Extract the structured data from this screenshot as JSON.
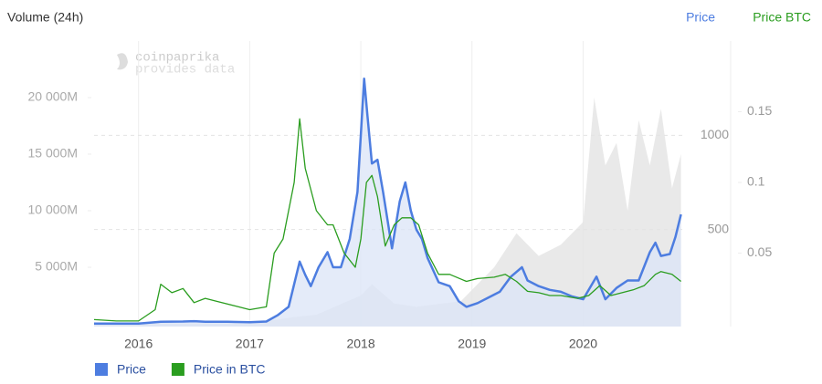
{
  "chart_data": {
    "type": "line",
    "ylabel": "Volume (24h)",
    "y2label": "Price",
    "y3label": "Price BTC",
    "watermark": [
      "coinpaprika",
      "provides data"
    ],
    "xlim": [
      2015.6,
      2020.9
    ],
    "xticks": [
      2016,
      2017,
      2018,
      2019,
      2020
    ],
    "ylim": [
      0,
      25000
    ],
    "yticks": [
      {
        "value": 5000,
        "label": "5 000M"
      },
      {
        "value": 10000,
        "label": "10 000M"
      },
      {
        "value": 15000,
        "label": "15 000M"
      },
      {
        "value": 20000,
        "label": "20 000M"
      }
    ],
    "y2lim": [
      0,
      1500
    ],
    "y2ticks": [
      500,
      1000
    ],
    "y3lim": [
      0,
      0.2
    ],
    "y3ticks": [
      0.05,
      0.1,
      0.15
    ],
    "grid": true,
    "volume": {
      "color": "#e4e4e4",
      "x": [
        2015.6,
        2016.0,
        2016.5,
        2017.0,
        2017.4,
        2017.6,
        2018.0,
        2018.1,
        2018.3,
        2018.5,
        2018.9,
        2019.2,
        2019.4,
        2019.6,
        2019.8,
        2020.0,
        2020.1,
        2020.2,
        2020.3,
        2020.4,
        2020.5,
        2020.6,
        2020.7,
        2020.8,
        2020.88
      ],
      "values": [
        1,
        5,
        30,
        20,
        600,
        800,
        2500,
        3500,
        1800,
        1500,
        2000,
        5000,
        8000,
        6000,
        7000,
        9000,
        20000,
        14000,
        16000,
        10000,
        18000,
        14000,
        19000,
        12000,
        15000
      ]
    },
    "series": [
      {
        "name": "Price",
        "color": "#4d7de0",
        "fill": "#dbe4f7",
        "axis": "y2",
        "x": [
          2015.6,
          2015.8,
          2016.0,
          2016.2,
          2016.4,
          2016.5,
          2016.6,
          2016.8,
          2017.0,
          2017.15,
          2017.25,
          2017.35,
          2017.45,
          2017.5,
          2017.55,
          2017.62,
          2017.7,
          2017.75,
          2017.82,
          2017.9,
          2017.97,
          2018.03,
          2018.06,
          2018.1,
          2018.15,
          2018.2,
          2018.28,
          2018.35,
          2018.4,
          2018.45,
          2018.5,
          2018.55,
          2018.6,
          2018.7,
          2018.8,
          2018.88,
          2018.95,
          2019.05,
          2019.15,
          2019.25,
          2019.35,
          2019.45,
          2019.5,
          2019.6,
          2019.7,
          2019.8,
          2019.9,
          2020.0,
          2020.12,
          2020.2,
          2020.3,
          2020.4,
          2020.5,
          2020.6,
          2020.65,
          2020.7,
          2020.78,
          2020.83,
          2020.88
        ],
        "values": [
          1,
          1,
          1,
          11,
          12,
          14,
          11,
          11,
          8,
          12,
          45,
          90,
          330,
          260,
          200,
          300,
          380,
          300,
          300,
          450,
          700,
          1300,
          1100,
          850,
          870,
          700,
          400,
          650,
          750,
          600,
          500,
          450,
          350,
          220,
          200,
          120,
          90,
          110,
          140,
          170,
          250,
          300,
          230,
          200,
          180,
          170,
          145,
          130,
          250,
          130,
          190,
          230,
          230,
          380,
          430,
          360,
          370,
          460,
          580
        ]
      },
      {
        "name": "Price in BTC",
        "color": "#2a9d1f",
        "axis": "y3",
        "x": [
          2015.6,
          2015.8,
          2016.0,
          2016.15,
          2016.2,
          2016.3,
          2016.4,
          2016.5,
          2016.6,
          2016.7,
          2016.9,
          2017.0,
          2017.15,
          2017.22,
          2017.3,
          2017.4,
          2017.45,
          2017.5,
          2017.6,
          2017.7,
          2017.75,
          2017.85,
          2017.95,
          2018.0,
          2018.05,
          2018.1,
          2018.15,
          2018.22,
          2018.3,
          2018.37,
          2018.45,
          2018.52,
          2018.6,
          2018.7,
          2018.8,
          2018.95,
          2019.05,
          2019.2,
          2019.3,
          2019.4,
          2019.5,
          2019.6,
          2019.7,
          2019.8,
          2019.95,
          2020.05,
          2020.15,
          2020.25,
          2020.35,
          2020.45,
          2020.55,
          2020.65,
          2020.7,
          2020.8,
          2020.88
        ],
        "values": [
          0.003,
          0.002,
          0.002,
          0.01,
          0.028,
          0.022,
          0.025,
          0.015,
          0.018,
          0.016,
          0.012,
          0.01,
          0.012,
          0.05,
          0.06,
          0.1,
          0.145,
          0.11,
          0.08,
          0.07,
          0.07,
          0.05,
          0.04,
          0.06,
          0.1,
          0.105,
          0.09,
          0.055,
          0.07,
          0.075,
          0.075,
          0.07,
          0.05,
          0.035,
          0.035,
          0.03,
          0.032,
          0.033,
          0.035,
          0.03,
          0.023,
          0.022,
          0.02,
          0.02,
          0.018,
          0.02,
          0.027,
          0.02,
          0.022,
          0.024,
          0.027,
          0.035,
          0.037,
          0.035,
          0.03
        ]
      }
    ]
  }
}
